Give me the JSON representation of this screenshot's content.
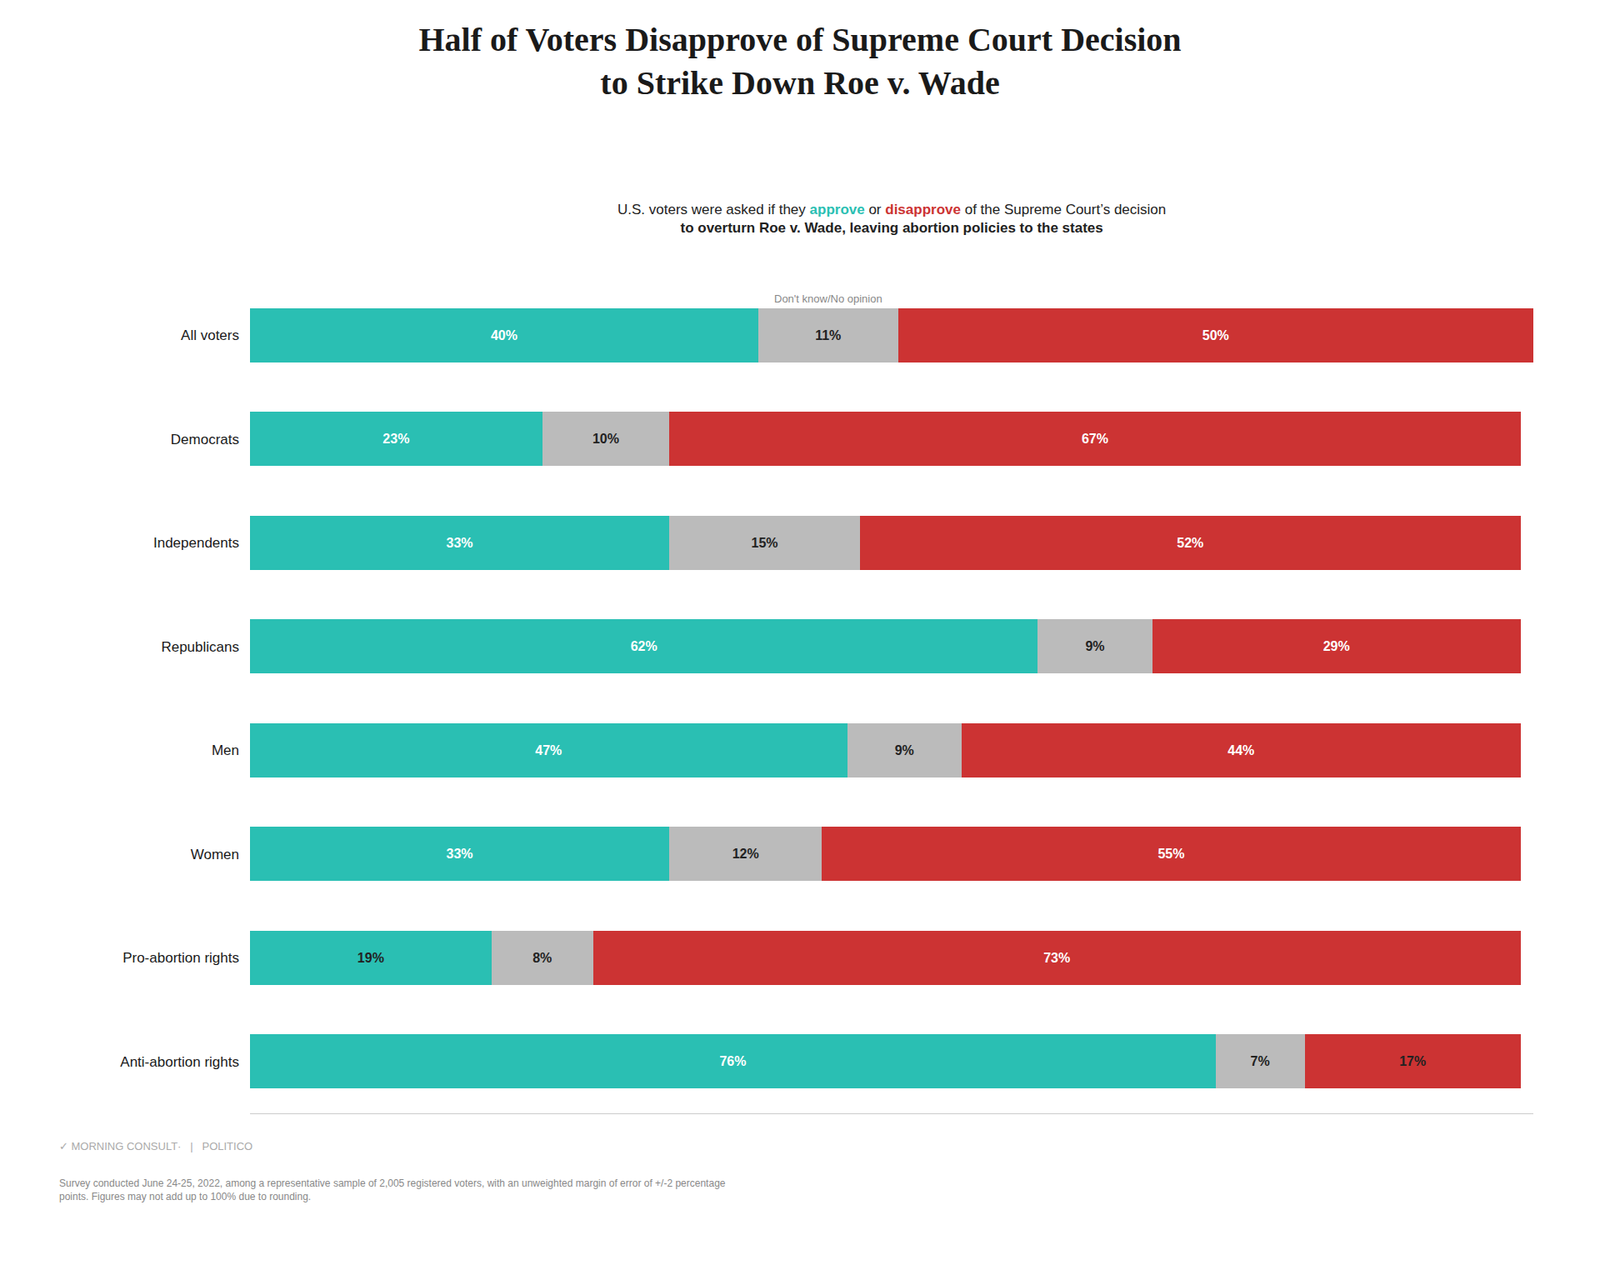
{
  "chart_data": {
    "type": "bar",
    "orientation": "horizontal",
    "stacked": true,
    "data_labels": true,
    "grid": false,
    "tick_labels": "y",
    "title": "Half of Voters Disapprove of Supreme Court Decision\nto Strike Down Roe v. Wade",
    "subtitle": [
      "U.S. voters were asked if they approve or disapprove of the Supreme Court’s decision",
      "to overturn Roe v. Wade, leaving abortion policies to the states"
    ],
    "annotations": [
      "✓ MORNING CONSULT·   |   POLITICO",
      "Survey conducted June 24-25, 2022, among a representative sample of 2,005 registered voters, with an unweighted margin of error of +/-2 percentage\npoints. Figures may not add up to 100% due to rounding."
    ],
    "categories": [
      "All voters",
      "Democrats",
      "Independents",
      "Republicans",
      "Men",
      "Women",
      "Pro-abortion rights",
      "Anti-abortion rights"
    ],
    "series": [
      {
        "name": "approve",
        "color": "#2ABFB3",
        "values": [
          40,
          23,
          33,
          62,
          47,
          33,
          19,
          76
        ],
        "value_labels": [
          "40%",
          "23%",
          "33%",
          "62%",
          "47%",
          "33%",
          "19%",
          "76%"
        ]
      },
      {
        "name": "Don't know/No opinion",
        "color": "#BBBBBB",
        "values": [
          11,
          10,
          15,
          9,
          9,
          12,
          8,
          7
        ],
        "value_labels": [
          "11%",
          "10%",
          "15%",
          "9%",
          "9%",
          "12%",
          "8%",
          "7%"
        ]
      },
      {
        "name": "disapprove",
        "color": "#CC3333",
        "values": [
          50,
          67,
          52,
          29,
          44,
          55,
          73,
          17
        ],
        "value_labels": [
          "50%",
          "67%",
          "52%",
          "29%",
          "44%",
          "55%",
          "73%",
          "17%"
        ]
      }
    ],
    "xlim": [
      0,
      101
    ]
  }
}
